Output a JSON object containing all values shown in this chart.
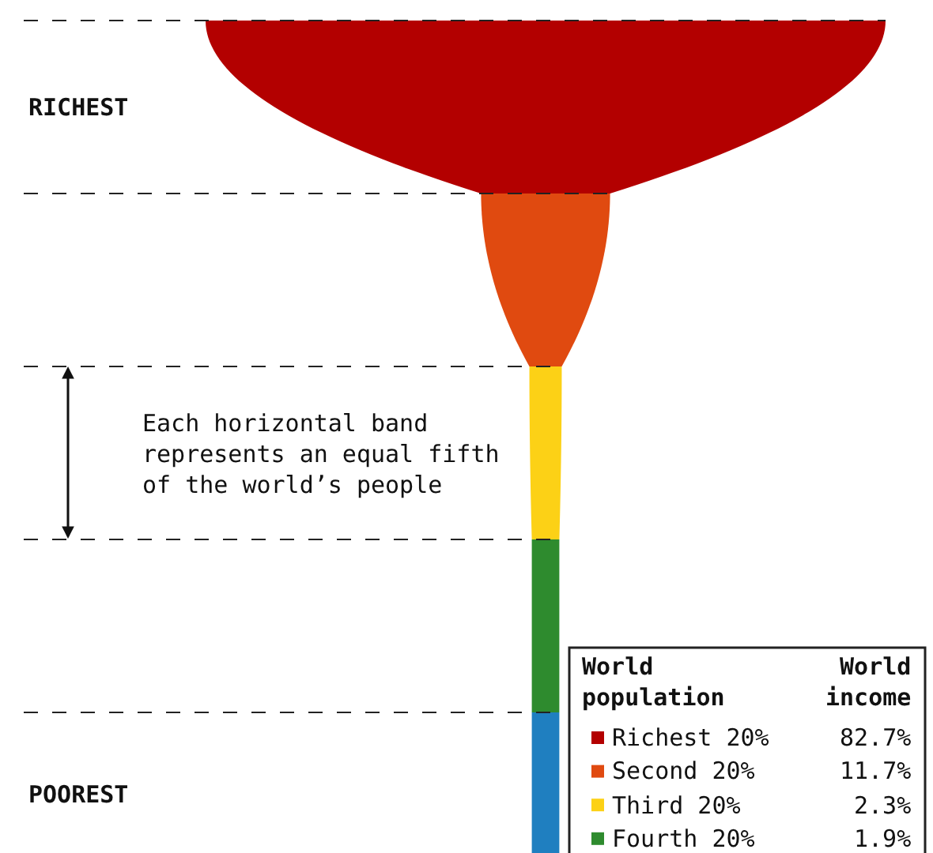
{
  "chart_data": {
    "type": "other",
    "categories": [
      "Richest 20%",
      "Second 20%",
      "Third 20%",
      "Fourth 20%",
      null
    ],
    "values": [
      82.7,
      11.7,
      2.3,
      1.9,
      null
    ],
    "value_labels": [
      "82.7%",
      "11.7%",
      "2.3%",
      "1.9%",
      null
    ],
    "colors": [
      "#b30000",
      "#e04a10",
      "#fcd116",
      "#2e8b2e",
      "#1f7fc0"
    ],
    "annotations": [
      "RICHEST",
      "POOREST",
      "Each horizontal band represents an equal fifth of the world’s people",
      "World population",
      "World income"
    ],
    "legend": false
  }
}
